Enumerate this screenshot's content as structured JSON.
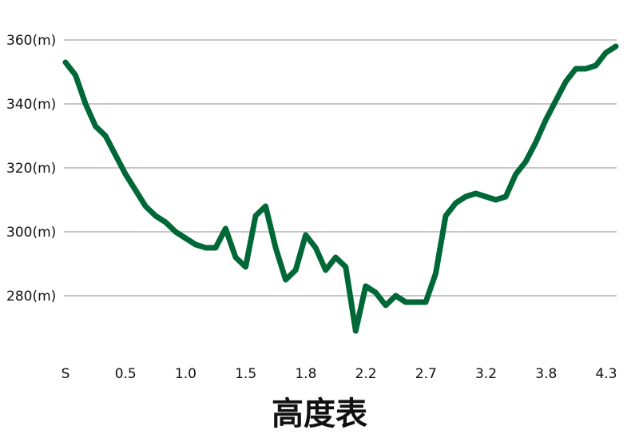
{
  "chart_data": {
    "type": "line",
    "title": "高度表",
    "xlabel": "",
    "ylabel": "",
    "ylim": [
      260,
      365
    ],
    "y_ticks": [
      {
        "value": 280,
        "label": "280(m)"
      },
      {
        "value": 300,
        "label": "300(m)"
      },
      {
        "value": 320,
        "label": "320(m)"
      },
      {
        "value": 340,
        "label": "340(m)"
      },
      {
        "value": 360,
        "label": "360(m)"
      }
    ],
    "x_ticks": [
      "S",
      "0.5",
      "1.0",
      "1.5",
      "1.8",
      "2.2",
      "2.7",
      "3.2",
      "3.8",
      "4.3"
    ],
    "grid": "horizontal",
    "legend": "none",
    "series": [
      {
        "color": "#006837",
        "values": [
          353,
          349,
          340,
          333,
          330,
          324,
          318,
          313,
          308,
          305,
          303,
          300,
          298,
          296,
          295,
          295,
          301,
          292,
          289,
          305,
          308,
          295,
          285,
          288,
          299,
          295,
          288,
          292,
          289,
          269,
          283,
          281,
          277,
          280,
          278,
          278,
          278,
          287,
          305,
          309,
          311,
          312,
          311,
          310,
          311,
          318,
          322,
          328,
          335,
          341,
          347,
          351,
          351,
          352,
          356,
          358
        ]
      }
    ]
  }
}
